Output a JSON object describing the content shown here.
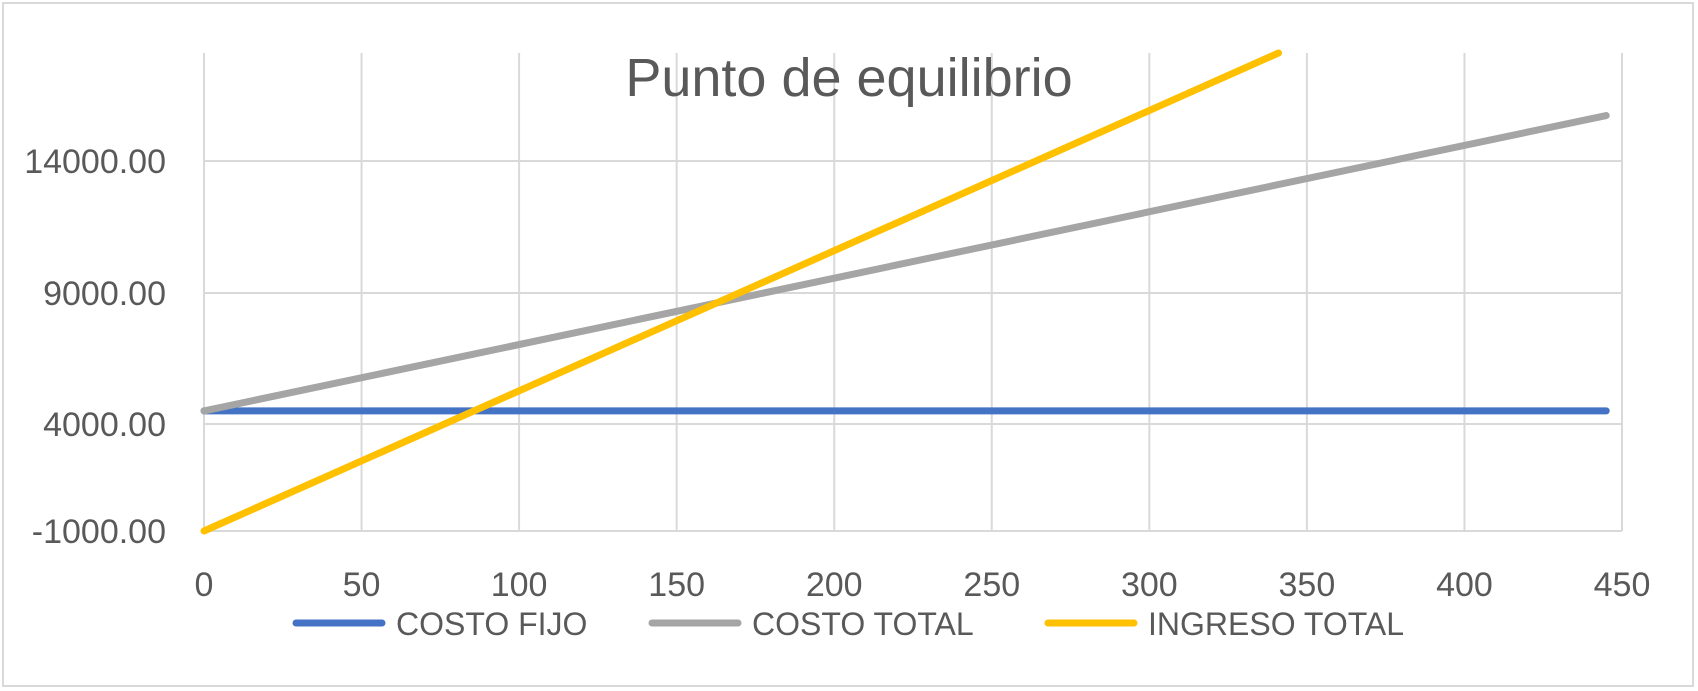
{
  "chart_data": {
    "type": "line",
    "title": "Punto de equilibrio",
    "x_ticks": [
      "0",
      "50",
      "100",
      "150",
      "200",
      "250",
      "300",
      "350",
      "400",
      "450"
    ],
    "y_ticks": [
      "-1000.00",
      "4000.00",
      "9000.00",
      "14000.00"
    ],
    "xlim": [
      0,
      450
    ],
    "ylim": [
      -1000,
      17800
    ],
    "grid": true,
    "legend_position": "bottom",
    "series": [
      {
        "name": "COSTO FIJO",
        "color": "#4472c4",
        "x": [
          0,
          445
        ],
        "y": [
          4500,
          4500
        ]
      },
      {
        "name": "COSTO TOTAL",
        "color": "#a5a5a5",
        "x": [
          0,
          445
        ],
        "y": [
          4500,
          15600
        ]
      },
      {
        "name": "INGRESO TOTAL",
        "color": "#ffc000",
        "x": [
          0,
          341
        ],
        "y": [
          0,
          17800
        ]
      }
    ]
  }
}
